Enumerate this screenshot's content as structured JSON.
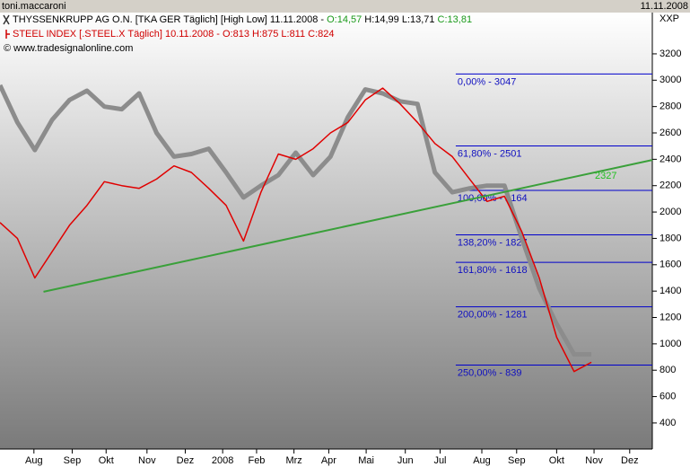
{
  "header": {
    "user": "toni.maccaroni",
    "date": "11.11.2008"
  },
  "chart_data": {
    "type": "line",
    "legend": [
      {
        "text": "THYSSENKRUPP AG O.N. [TKA GER  Täglich] [High Low] 11.11.2008 - ",
        "open": "O:14,57",
        "hl": "H:14,99 L:13,71",
        "close": "C:13,81"
      },
      {
        "text": "STEEL INDEX [.STEEL.X  Täglich] 10.11.2008 - O:813 H:875 L:811 C:824"
      }
    ],
    "source": "© www.tradesignalonline.com",
    "axis_title": "XXP",
    "x": [
      0,
      2,
      4,
      6,
      8,
      10,
      12,
      14,
      16,
      18,
      20,
      22,
      24,
      26,
      28,
      30,
      32,
      34,
      36,
      38,
      40,
      42,
      44,
      46,
      48,
      50,
      52,
      54,
      56,
      58,
      60,
      62,
      64,
      66,
      68
    ],
    "series": [
      {
        "name": "THYSSENKRUPP AG O.N.",
        "color": "#8c8c8c",
        "values": [
          2962,
          2680,
          2470,
          2700,
          2850,
          2920,
          2800,
          2780,
          2900,
          2600,
          2420,
          2440,
          2480,
          2300,
          2110,
          2200,
          2280,
          2450,
          2280,
          2420,
          2720,
          2930,
          2900,
          2840,
          2820,
          2300,
          2150,
          2180,
          2200,
          2200,
          1800,
          1420,
          1150,
          920,
          920
        ]
      },
      {
        "name": "STEEL INDEX",
        "color": "#e00000",
        "values": [
          1920,
          1800,
          1500,
          1700,
          1900,
          2050,
          2230,
          2200,
          2180,
          2250,
          2350,
          2300,
          2180,
          2050,
          1780,
          2150,
          2440,
          2400,
          2480,
          2600,
          2680,
          2850,
          2940,
          2820,
          2680,
          2520,
          2420,
          2250,
          2080,
          2120,
          1850,
          1500,
          1050,
          790,
          860
        ]
      }
    ],
    "xlim": [
      0,
      75
    ],
    "xticks": [
      {
        "value": 3.9,
        "label": "Aug"
      },
      {
        "value": 8.3,
        "label": "Sep"
      },
      {
        "value": 12.2,
        "label": "Okt"
      },
      {
        "value": 16.9,
        "label": "Nov"
      },
      {
        "value": 21.3,
        "label": "Dez"
      },
      {
        "value": 25.6,
        "label": "2008"
      },
      {
        "value": 29.5,
        "label": "Feb"
      },
      {
        "value": 33.8,
        "label": "Mrz"
      },
      {
        "value": 37.8,
        "label": "Apr"
      },
      {
        "value": 42.1,
        "label": "Mai"
      },
      {
        "value": 46.6,
        "label": "Jun"
      },
      {
        "value": 50.6,
        "label": "Jul"
      },
      {
        "value": 55.4,
        "label": "Aug"
      },
      {
        "value": 59.4,
        "label": "Sep"
      },
      {
        "value": 64,
        "label": "Okt"
      },
      {
        "value": 68.3,
        "label": "Nov"
      },
      {
        "value": 72.4,
        "label": "Dez"
      }
    ],
    "ylim": [
      202,
      3513
    ],
    "yticks": [
      400,
      600,
      800,
      1000,
      1200,
      1400,
      1600,
      1800,
      2000,
      2200,
      2400,
      2600,
      2800,
      3000,
      3200
    ],
    "fib_start": 52.4,
    "fib_levels": [
      {
        "value": 3047,
        "label": "0,00% - 3047"
      },
      {
        "value": 2501,
        "label": "61,80% - 2501"
      },
      {
        "value": 2164,
        "label": "100,00% - 2164"
      },
      {
        "value": 1827,
        "label": "138,20% - 1827"
      },
      {
        "value": 1618,
        "label": "161,80% - 1618"
      },
      {
        "value": 1281,
        "label": "200,00% - 1281"
      },
      {
        "value": 839,
        "label": "250,00% - 839"
      }
    ],
    "trendline": {
      "x": [
        5,
        75
      ],
      "values": [
        1395,
        2395
      ],
      "color": "#3aa03a",
      "label": "2327"
    }
  }
}
